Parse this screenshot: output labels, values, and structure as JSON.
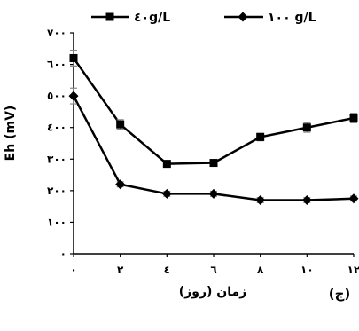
{
  "chart_data": {
    "type": "line",
    "x": [
      "٠",
      "٢",
      "٤",
      "٦",
      "٨",
      "١٠",
      "١٢"
    ],
    "series": [
      {
        "name": "٤٠g/L",
        "marker": "square",
        "values": [
          620,
          410,
          285,
          288,
          370,
          400,
          430
        ],
        "errors": [
          25,
          15,
          8,
          8,
          12,
          15,
          15
        ]
      },
      {
        "name": "١٠٠ g/L",
        "marker": "diamond",
        "values": [
          500,
          220,
          190,
          190,
          170,
          170,
          175
        ],
        "errors": [
          25,
          8,
          8,
          8,
          8,
          8,
          8
        ]
      }
    ],
    "ylabel": "Eh (mV)",
    "xlabel": "زمان (روز)",
    "ylim": [
      0,
      700
    ],
    "yticks": [
      0,
      100,
      200,
      300,
      400,
      500,
      600,
      700
    ],
    "yticklabels": [
      "٠",
      "١٠٠",
      "٢٠٠",
      "٣٠٠",
      "٤٠٠",
      "٥٠٠",
      "٦٠٠",
      "٧٠٠"
    ],
    "grid": false,
    "legend_position": "top",
    "panel_label": "(ج)",
    "colors": {
      "line": "#000000",
      "axis": "#000000",
      "error_bar": "#888888"
    }
  }
}
